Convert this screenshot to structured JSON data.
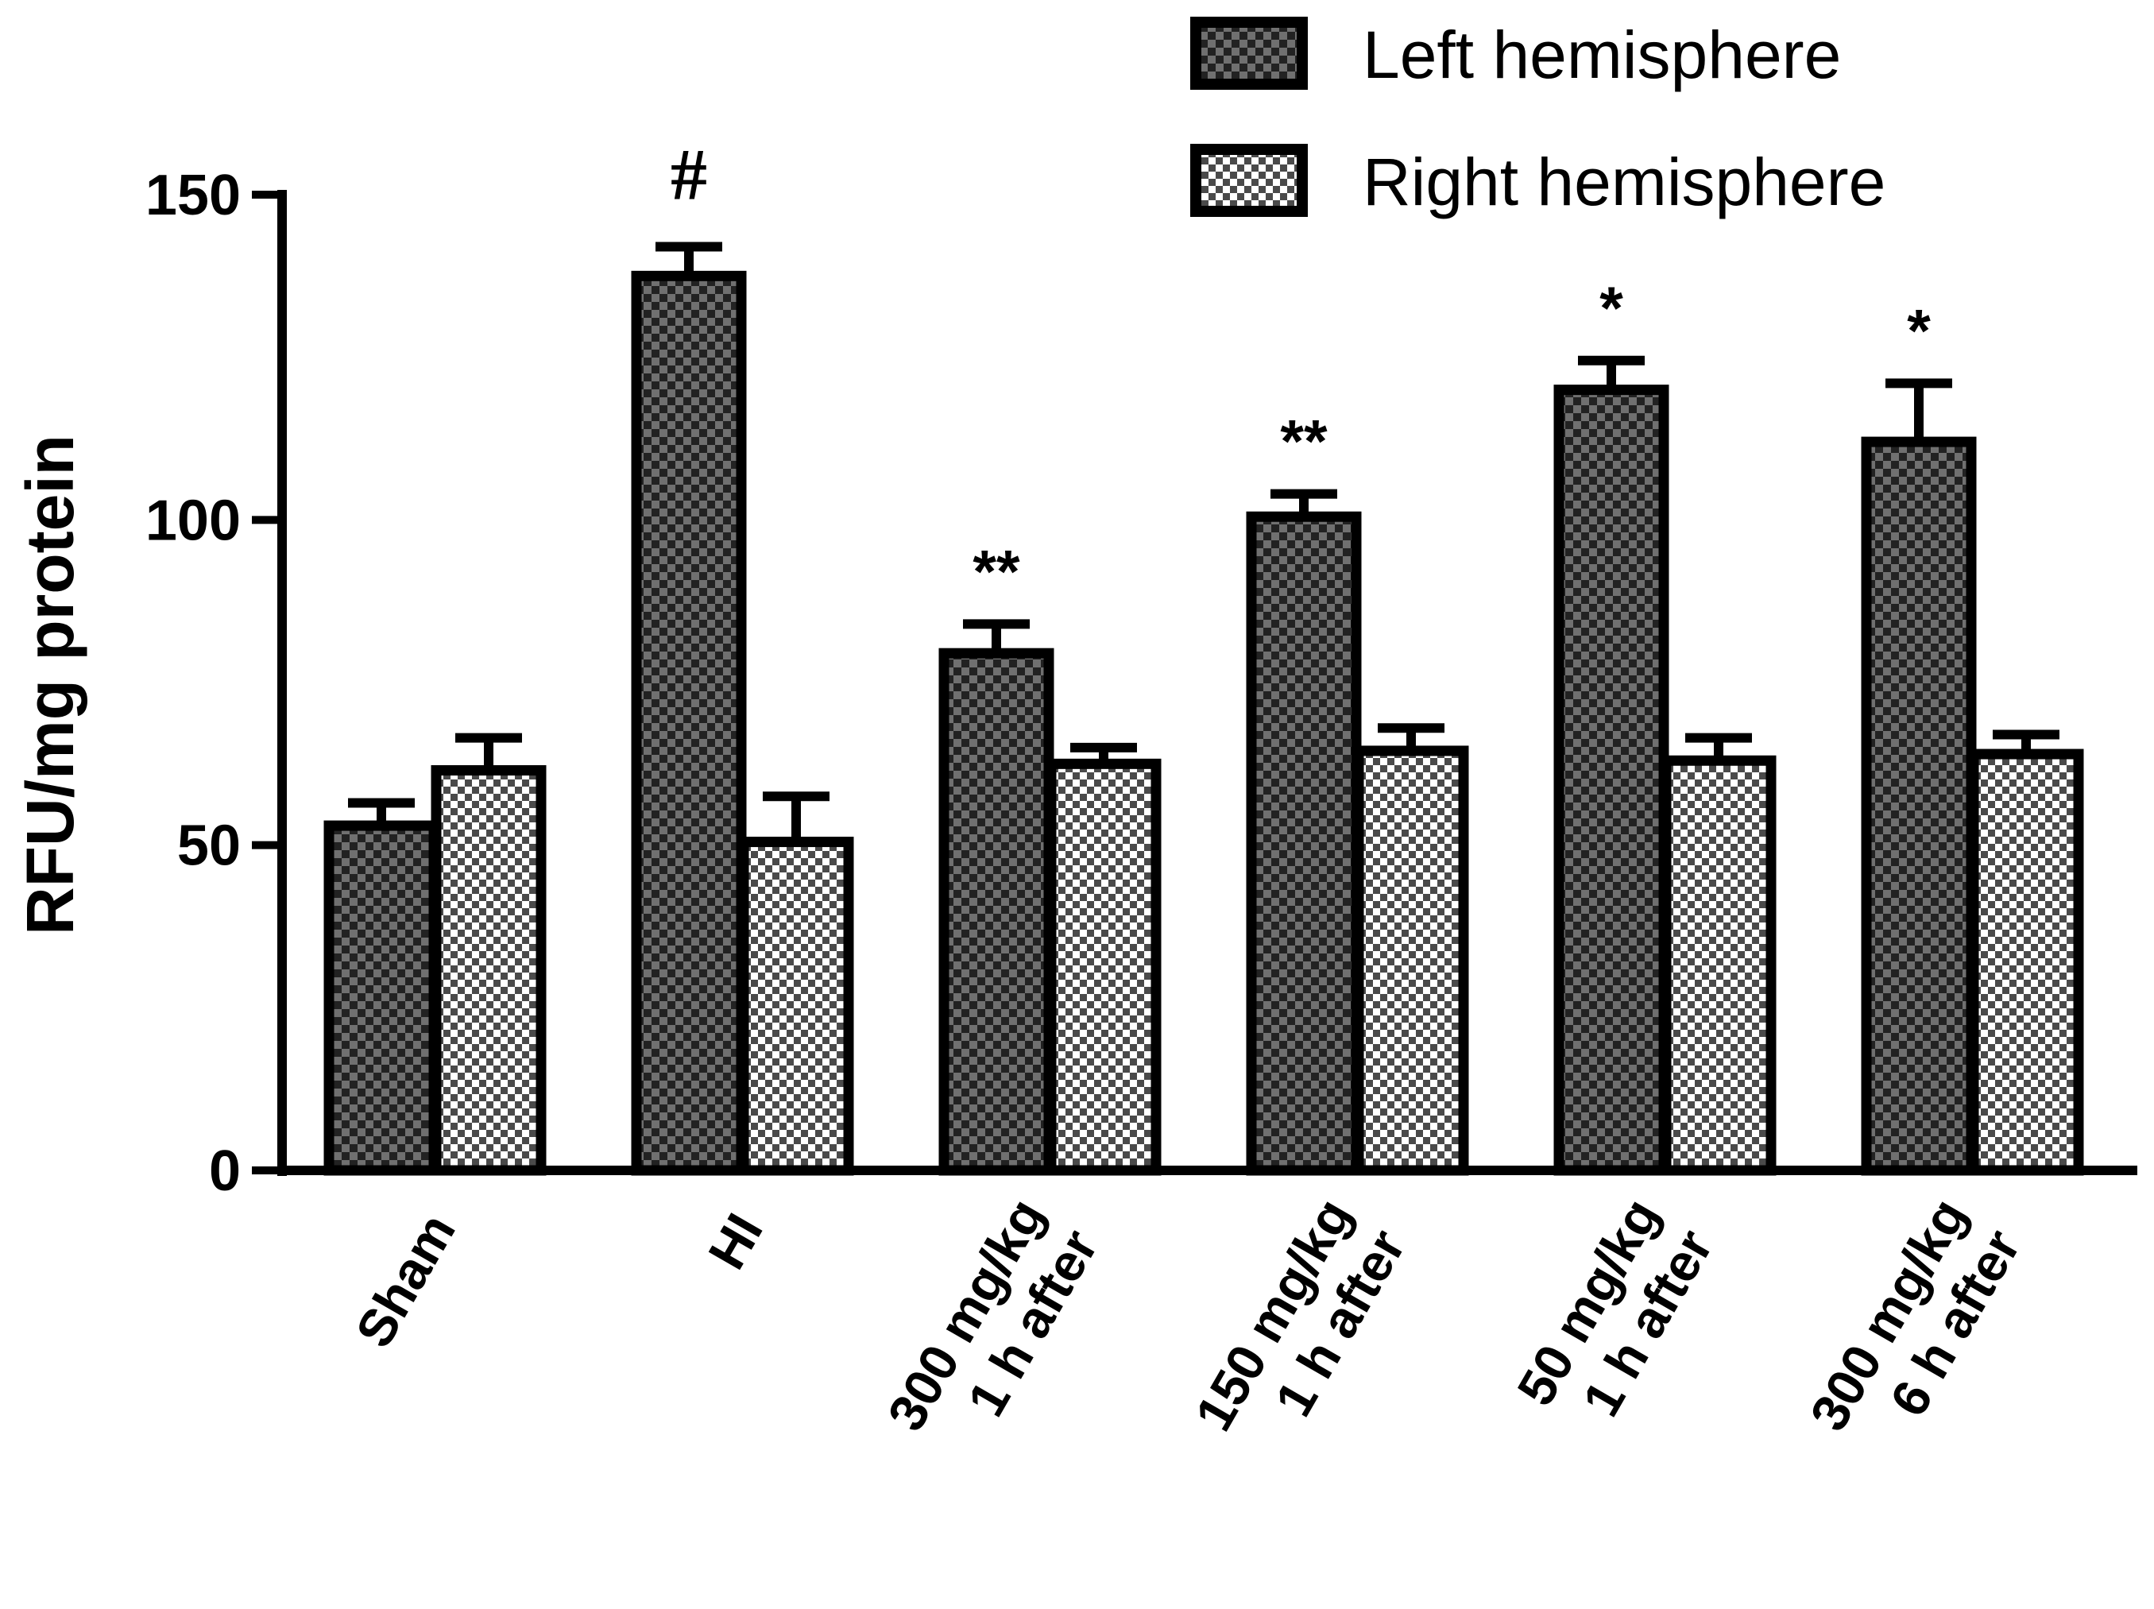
{
  "chart_data": {
    "type": "bar",
    "ylabel": "RFU/mg protein",
    "ylim": [
      0,
      150
    ],
    "yticks": [
      0,
      50,
      100,
      150
    ],
    "grid": false,
    "legend_position": "top-right",
    "categories": [
      [
        "Sham"
      ],
      [
        "HI"
      ],
      [
        "300 mg/kg",
        "1 h after"
      ],
      [
        "150 mg/kg",
        "1 h after"
      ],
      [
        "50 mg/kg",
        "1 h after"
      ],
      [
        "300 mg/kg",
        "6 h after"
      ]
    ],
    "series": [
      {
        "name": "Left hemisphere",
        "pattern": "dark-checker",
        "values": [
          53,
          137.5,
          79.5,
          100.5,
          120,
          112
        ],
        "errors": [
          3.5,
          4.5,
          4.5,
          3.5,
          4.5,
          9
        ]
      },
      {
        "name": "Right hemisphere",
        "pattern": "light-checker",
        "values": [
          61.5,
          50.5,
          62.5,
          64.5,
          63,
          64
        ],
        "errors": [
          5,
          7,
          2.5,
          3.5,
          3.5,
          3
        ]
      }
    ],
    "annotations": [
      "",
      "#",
      "**",
      "**",
      "*",
      "*"
    ],
    "colors": {
      "dark_checker_a": "#222222",
      "dark_checker_b": "#707070",
      "light_checker_a": "#ffffff",
      "light_checker_b": "#4a4a4a",
      "outline": "#000000"
    }
  }
}
